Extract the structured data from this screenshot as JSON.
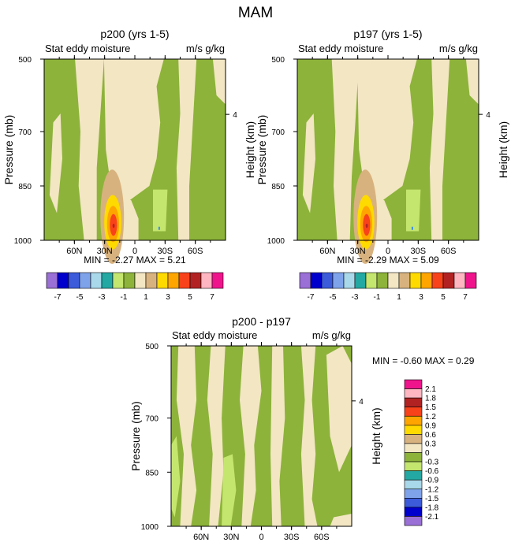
{
  "page_title": "MAM",
  "colors": {
    "tan_light": "#F2E6C3",
    "green": "#8DB33A",
    "green_light": "#C4E56E",
    "tan": "#D8B27E",
    "yellow": "#FFDA00",
    "orange": "#FFA500",
    "red_orange": "#F8421A",
    "dark_red": "#B22222",
    "cyan": "#7FD8E8",
    "blue": "#3F8FDF"
  },
  "chart_data": [
    {
      "id": "p200",
      "type": "heatmap",
      "title": "p200 (yrs 1-5)",
      "left_label": "Stat eddy moisture",
      "right_label": "m/s g/kg",
      "ylabel": "Pressure (mb)",
      "ylabel_right": "Height (km)",
      "yticks": [
        "500",
        "700",
        "850",
        "1000"
      ],
      "ytick_values": [
        500,
        700,
        850,
        1000
      ],
      "yticks_right": [
        "4"
      ],
      "xticks": [
        "60N",
        "30N",
        "0",
        "30S",
        "60S"
      ],
      "xtick_values": [
        60,
        30,
        0,
        -30,
        -60
      ],
      "xlim": [
        90,
        -90
      ],
      "ylim": [
        500,
        1000
      ],
      "min_max": "MIN =  -2.27   MAX =   5.21",
      "colorbar": {
        "orientation": "horizontal",
        "labels": [
          "-7",
          "-5",
          "-3",
          "-1",
          "1",
          "3",
          "5",
          "7"
        ],
        "colors": [
          "#9A6FD6",
          "#0000CC",
          "#3B5BDB",
          "#7FA3EA",
          "#A8D8EA",
          "#23A8A3",
          "#C4E56E",
          "#8DB33A",
          "#F2E6C3",
          "#D8B27E",
          "#FFDA00",
          "#FFA500",
          "#F8421A",
          "#B22222",
          "#FFB6C1",
          "#F0148C"
        ]
      }
    },
    {
      "id": "p197",
      "type": "heatmap",
      "title": "p197 (yrs 1-5)",
      "left_label": "Stat eddy moisture",
      "right_label": "m/s g/kg",
      "ylabel": "Pressure (mb)",
      "ylabel_right": "Height (km)",
      "yticks": [
        "500",
        "700",
        "850",
        "1000"
      ],
      "ytick_values": [
        500,
        700,
        850,
        1000
      ],
      "yticks_right": [
        "4"
      ],
      "xticks": [
        "60N",
        "30N",
        "0",
        "30S",
        "60S"
      ],
      "xtick_values": [
        60,
        30,
        0,
        -30,
        -60
      ],
      "xlim": [
        90,
        -90
      ],
      "ylim": [
        500,
        1000
      ],
      "min_max": "MIN =  -2.29   MAX =   5.09",
      "colorbar": {
        "orientation": "horizontal",
        "labels": [
          "-7",
          "-5",
          "-3",
          "-1",
          "1",
          "3",
          "5",
          "7"
        ],
        "colors": [
          "#9A6FD6",
          "#0000CC",
          "#3B5BDB",
          "#7FA3EA",
          "#A8D8EA",
          "#23A8A3",
          "#C4E56E",
          "#8DB33A",
          "#F2E6C3",
          "#D8B27E",
          "#FFDA00",
          "#FFA500",
          "#F8421A",
          "#B22222",
          "#FFB6C1",
          "#F0148C"
        ]
      }
    },
    {
      "id": "diff",
      "type": "heatmap",
      "title": "p200 - p197",
      "left_label": "Stat eddy moisture",
      "right_label": "m/s g/kg",
      "ylabel": "Pressure (mb)",
      "ylabel_right": "Height (km)",
      "yticks": [
        "500",
        "700",
        "850",
        "1000"
      ],
      "ytick_values": [
        500,
        700,
        850,
        1000
      ],
      "yticks_right": [
        "4"
      ],
      "xticks": [
        "60N",
        "30N",
        "0",
        "30S",
        "60S"
      ],
      "xtick_values": [
        60,
        30,
        0,
        -30,
        -60
      ],
      "xlim": [
        90,
        -90
      ],
      "ylim": [
        500,
        1000
      ],
      "min_max": "MIN =  -0.60   MAX =   0.29",
      "colorbar": {
        "orientation": "vertical",
        "labels": [
          "2.1",
          "1.8",
          "1.5",
          "1.2",
          "0.9",
          "0.6",
          "0.3",
          "0",
          "-0.3",
          "-0.6",
          "-0.9",
          "-1.2",
          "-1.5",
          "-1.8",
          "-2.1"
        ],
        "colors": [
          "#F0148C",
          "#FFB6C1",
          "#B22222",
          "#F8421A",
          "#FFA500",
          "#FFDA00",
          "#D8B27E",
          "#F2E6C3",
          "#8DB33A",
          "#C4E56E",
          "#23A8A3",
          "#A8D8EA",
          "#7FA3EA",
          "#3B5BDB",
          "#0000CC",
          "#9A6FD6"
        ]
      }
    }
  ]
}
